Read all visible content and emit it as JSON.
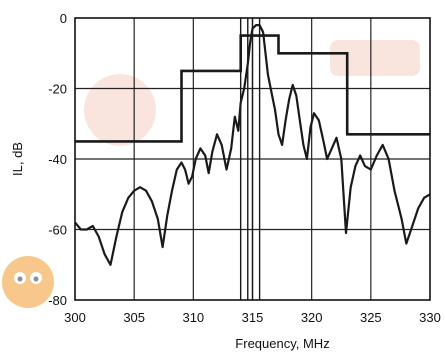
{
  "chart_data": {
    "type": "line",
    "xlabel": "Frequency, MHz",
    "ylabel": "IL, dB",
    "xlim": [
      300,
      330
    ],
    "ylim": [
      -80,
      0
    ],
    "x_ticks": [
      300,
      305,
      310,
      315,
      320,
      325,
      330
    ],
    "y_ticks": [
      0,
      -20,
      -40,
      -60,
      -80
    ],
    "grid": true,
    "series": [
      {
        "points": [
          [
            300.0,
            -58
          ],
          [
            300.5,
            -60
          ],
          [
            301.0,
            -60
          ],
          [
            301.5,
            -59
          ],
          [
            302.0,
            -62
          ],
          [
            302.5,
            -67
          ],
          [
            303.0,
            -70
          ],
          [
            303.5,
            -62
          ],
          [
            304.0,
            -55
          ],
          [
            304.5,
            -51
          ],
          [
            305.0,
            -49
          ],
          [
            305.5,
            -48
          ],
          [
            306.0,
            -49
          ],
          [
            306.5,
            -52
          ],
          [
            307.0,
            -57
          ],
          [
            307.4,
            -65
          ],
          [
            307.8,
            -56
          ],
          [
            308.2,
            -49
          ],
          [
            308.6,
            -43
          ],
          [
            309.0,
            -41
          ],
          [
            309.3,
            -43
          ],
          [
            309.6,
            -47
          ],
          [
            309.9,
            -45
          ],
          [
            310.2,
            -40
          ],
          [
            310.6,
            -37
          ],
          [
            311.0,
            -39
          ],
          [
            311.3,
            -44
          ],
          [
            311.6,
            -38
          ],
          [
            312.0,
            -33
          ],
          [
            312.4,
            -36
          ],
          [
            312.8,
            -43
          ],
          [
            313.2,
            -37
          ],
          [
            313.5,
            -28
          ],
          [
            313.8,
            -32
          ],
          [
            314.0,
            -24
          ],
          [
            314.3,
            -20
          ],
          [
            314.6,
            -13
          ],
          [
            314.8,
            -7
          ],
          [
            315.0,
            -3
          ],
          [
            315.3,
            -2
          ],
          [
            315.6,
            -2
          ],
          [
            315.9,
            -4
          ],
          [
            316.1,
            -10
          ],
          [
            316.3,
            -16
          ],
          [
            316.6,
            -21
          ],
          [
            316.9,
            -26
          ],
          [
            317.2,
            -33
          ],
          [
            317.5,
            -36
          ],
          [
            317.8,
            -29
          ],
          [
            318.1,
            -23
          ],
          [
            318.4,
            -19
          ],
          [
            318.7,
            -22
          ],
          [
            319.0,
            -29
          ],
          [
            319.3,
            -36
          ],
          [
            319.6,
            -40
          ],
          [
            319.9,
            -31
          ],
          [
            320.2,
            -27
          ],
          [
            320.6,
            -29
          ],
          [
            321.0,
            -35
          ],
          [
            321.3,
            -40
          ],
          [
            321.7,
            -37
          ],
          [
            322.1,
            -34
          ],
          [
            322.5,
            -40
          ],
          [
            322.9,
            -61
          ],
          [
            323.3,
            -48
          ],
          [
            323.7,
            -42
          ],
          [
            324.1,
            -39
          ],
          [
            324.5,
            -42
          ],
          [
            325.0,
            -43
          ],
          [
            325.5,
            -39
          ],
          [
            326.0,
            -36
          ],
          [
            326.5,
            -40
          ],
          [
            327.0,
            -49
          ],
          [
            327.6,
            -57
          ],
          [
            328.0,
            -64
          ],
          [
            328.5,
            -59
          ],
          [
            329.0,
            -54
          ],
          [
            329.5,
            -51
          ],
          [
            330.0,
            -50
          ]
        ]
      },
      {
        "points": [
          [
            300,
            -35
          ],
          [
            307.5,
            -35
          ],
          [
            307.5,
            -35
          ],
          [
            309,
            -35
          ],
          [
            309,
            -15
          ],
          [
            314,
            -15
          ],
          [
            314,
            -5
          ],
          [
            317.2,
            -5
          ],
          [
            317.2,
            -10
          ],
          [
            323,
            -10
          ],
          [
            323,
            -33
          ],
          [
            330,
            -33
          ]
        ]
      }
    ],
    "vertical_markers_mhz": [
      314.0,
      314.6,
      315.0,
      315.6
    ]
  }
}
